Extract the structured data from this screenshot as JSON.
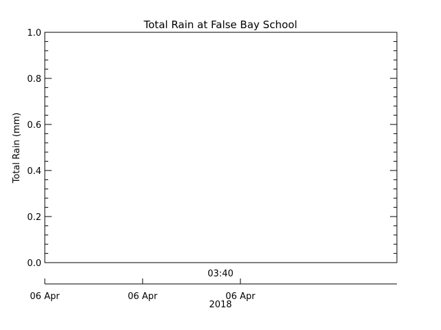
{
  "chart_data": {
    "type": "line",
    "title": "Total Rain at False Bay School",
    "ylabel": "Total Rain (mm)",
    "ylim": [
      0.0,
      1.0
    ],
    "y_ticks": [
      "0.0",
      "0.2",
      "0.4",
      "0.6",
      "0.8",
      "1.0"
    ],
    "time_axis_label": "03:40",
    "date_ticks": [
      "06 Apr",
      "06 Apr",
      "06 Apr"
    ],
    "year_label": "2018",
    "series": [
      {
        "values": []
      }
    ],
    "grid": false,
    "colors": {
      "axes": "#000000",
      "background": "#ffffff"
    }
  }
}
